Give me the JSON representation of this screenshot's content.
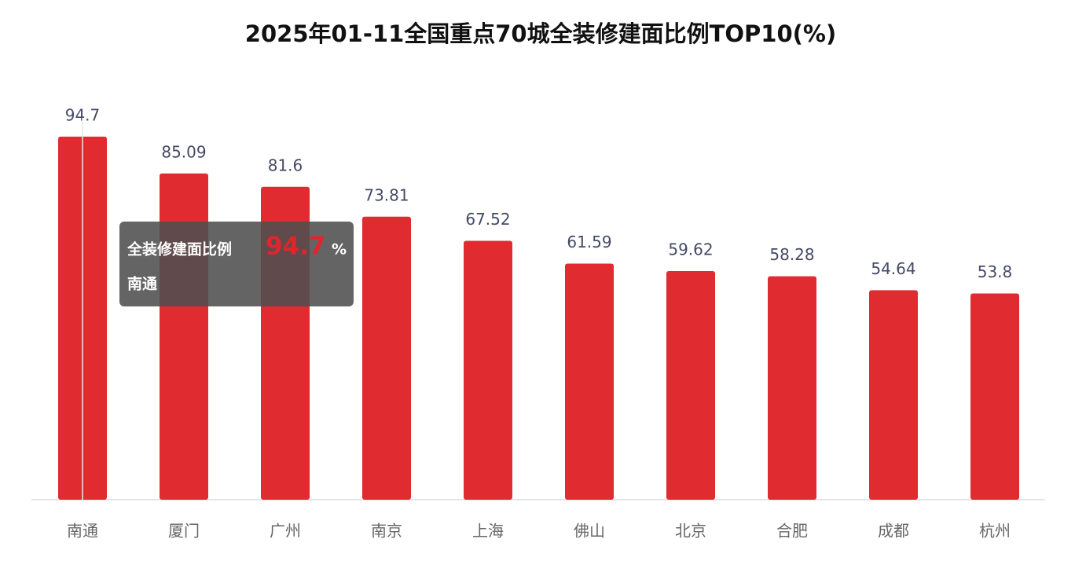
{
  "chart_data": {
    "type": "bar",
    "title": "2025年01-11全国重点70城全装修建面比例TOP10(%)",
    "series_name": "全装修建面比例",
    "unit": "%",
    "categories": [
      "南通",
      "厦门",
      "广州",
      "南京",
      "上海",
      "佛山",
      "北京",
      "合肥",
      "成都",
      "杭州"
    ],
    "values": [
      94.7,
      85.09,
      81.6,
      73.81,
      67.52,
      61.59,
      59.62,
      58.28,
      54.64,
      53.8
    ],
    "color": "#e02b31",
    "ylim": [
      0,
      100
    ]
  }
}
